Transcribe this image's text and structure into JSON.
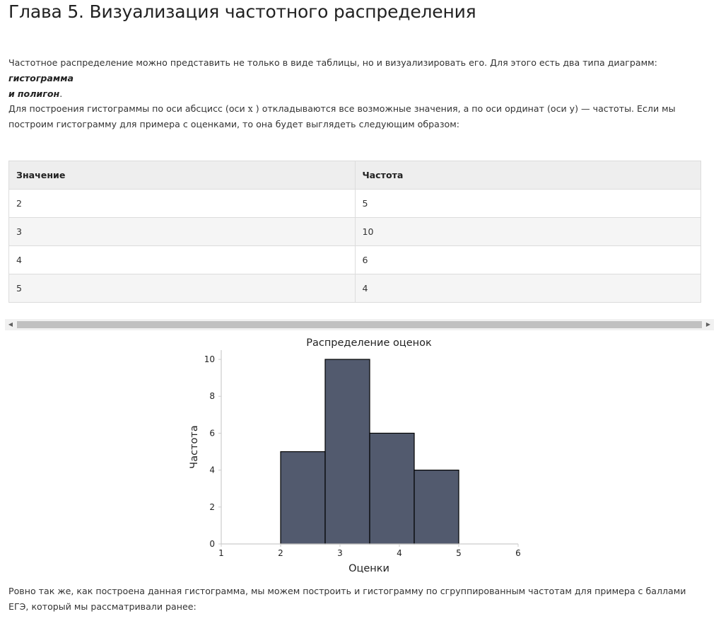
{
  "page": {
    "title": "Глава 5. Визуализация частотного распределения",
    "intro": {
      "text": "Частотное распределение можно представить не только в виде таблицы, но и визуализировать его. Для этого есть два типа диаграмм: ",
      "term1": "гистограмма",
      "join": "и",
      "term2": "полигон",
      "end": "."
    },
    "para2": {
      "before": "Для построения гистограммы по оси абсцисс (оси ",
      "x_symbol": "x",
      "after": " ) откладываются все возможные значения, а по оси ординат (оси y) — частоты. Если мы построим гистограмму для примера с оценками, то она будет выглядеть следующим образом:"
    },
    "para3": "Ровно так же, как построена данная гистограмма, мы можем построить и гистограмму по сгруппированным частотам для примера с баллами ЕГЭ, который мы рассматривали ранее:"
  },
  "table": {
    "headers": [
      "Значение",
      "Частота"
    ],
    "rows": [
      [
        "2",
        "5"
      ],
      [
        "3",
        "10"
      ],
      [
        "4",
        "6"
      ],
      [
        "5",
        "4"
      ]
    ]
  },
  "scrollbar": {
    "left_arrow": "◀",
    "right_arrow": "▶"
  },
  "chart_data": {
    "type": "bar",
    "title": "Распределение оценок",
    "xlabel": "Оценки",
    "ylabel": "Частота",
    "xlim": [
      1,
      6
    ],
    "ylim": [
      0,
      10.5
    ],
    "xticks": [
      1,
      2,
      3,
      4,
      5,
      6
    ],
    "yticks": [
      0,
      2,
      4,
      6,
      8,
      10
    ],
    "bins": [
      {
        "x0": 2.0,
        "x1": 2.75,
        "value": 5
      },
      {
        "x0": 2.75,
        "x1": 3.5,
        "value": 10
      },
      {
        "x0": 3.5,
        "x1": 4.25,
        "value": 6
      },
      {
        "x0": 4.25,
        "x1": 5.0,
        "value": 4
      }
    ],
    "bar_color": "#525a6e",
    "edge_color": "#000000",
    "grid": false
  }
}
